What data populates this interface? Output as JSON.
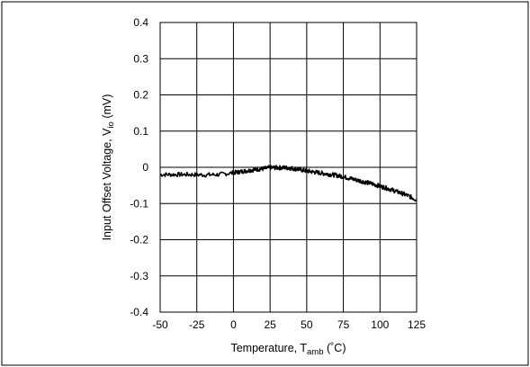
{
  "chart_data": {
    "type": "line",
    "xlabel": {
      "main": "Temperature, T",
      "sub": "amb",
      "unit": " (˚C)"
    },
    "ylabel": {
      "main": "Input Offset Voltage, V",
      "sub": "io",
      "unit": " (mV)"
    },
    "xlim": [
      -50,
      125
    ],
    "ylim": [
      -0.4,
      0.4
    ],
    "grid": true,
    "x_ticks": [
      "-50",
      "-25",
      "0",
      "25",
      "50",
      "75",
      "100",
      "125"
    ],
    "y_ticks": [
      "0.4",
      "0.3",
      "0.2",
      "0.1",
      "0",
      "-0.1",
      "-0.2",
      "-0.3",
      "-0.4"
    ],
    "series": [
      {
        "color": "#000000",
        "x": [
          -50,
          -40,
          -30,
          -20,
          -10,
          0,
          5,
          10,
          15,
          20,
          25,
          30,
          35,
          40,
          45,
          50,
          55,
          60,
          65,
          70,
          75,
          80,
          85,
          90,
          95,
          100,
          105,
          110,
          115,
          120,
          125
        ],
        "y": [
          -0.02,
          -0.02,
          -0.02,
          -0.021,
          -0.02,
          -0.015,
          -0.012,
          -0.009,
          -0.006,
          -0.004,
          -0.001,
          -0.001,
          -0.001,
          -0.003,
          -0.006,
          -0.01,
          -0.013,
          -0.016,
          -0.019,
          -0.022,
          -0.026,
          -0.031,
          -0.036,
          -0.041,
          -0.046,
          -0.052,
          -0.058,
          -0.065,
          -0.072,
          -0.08,
          -0.09
        ]
      }
    ]
  }
}
